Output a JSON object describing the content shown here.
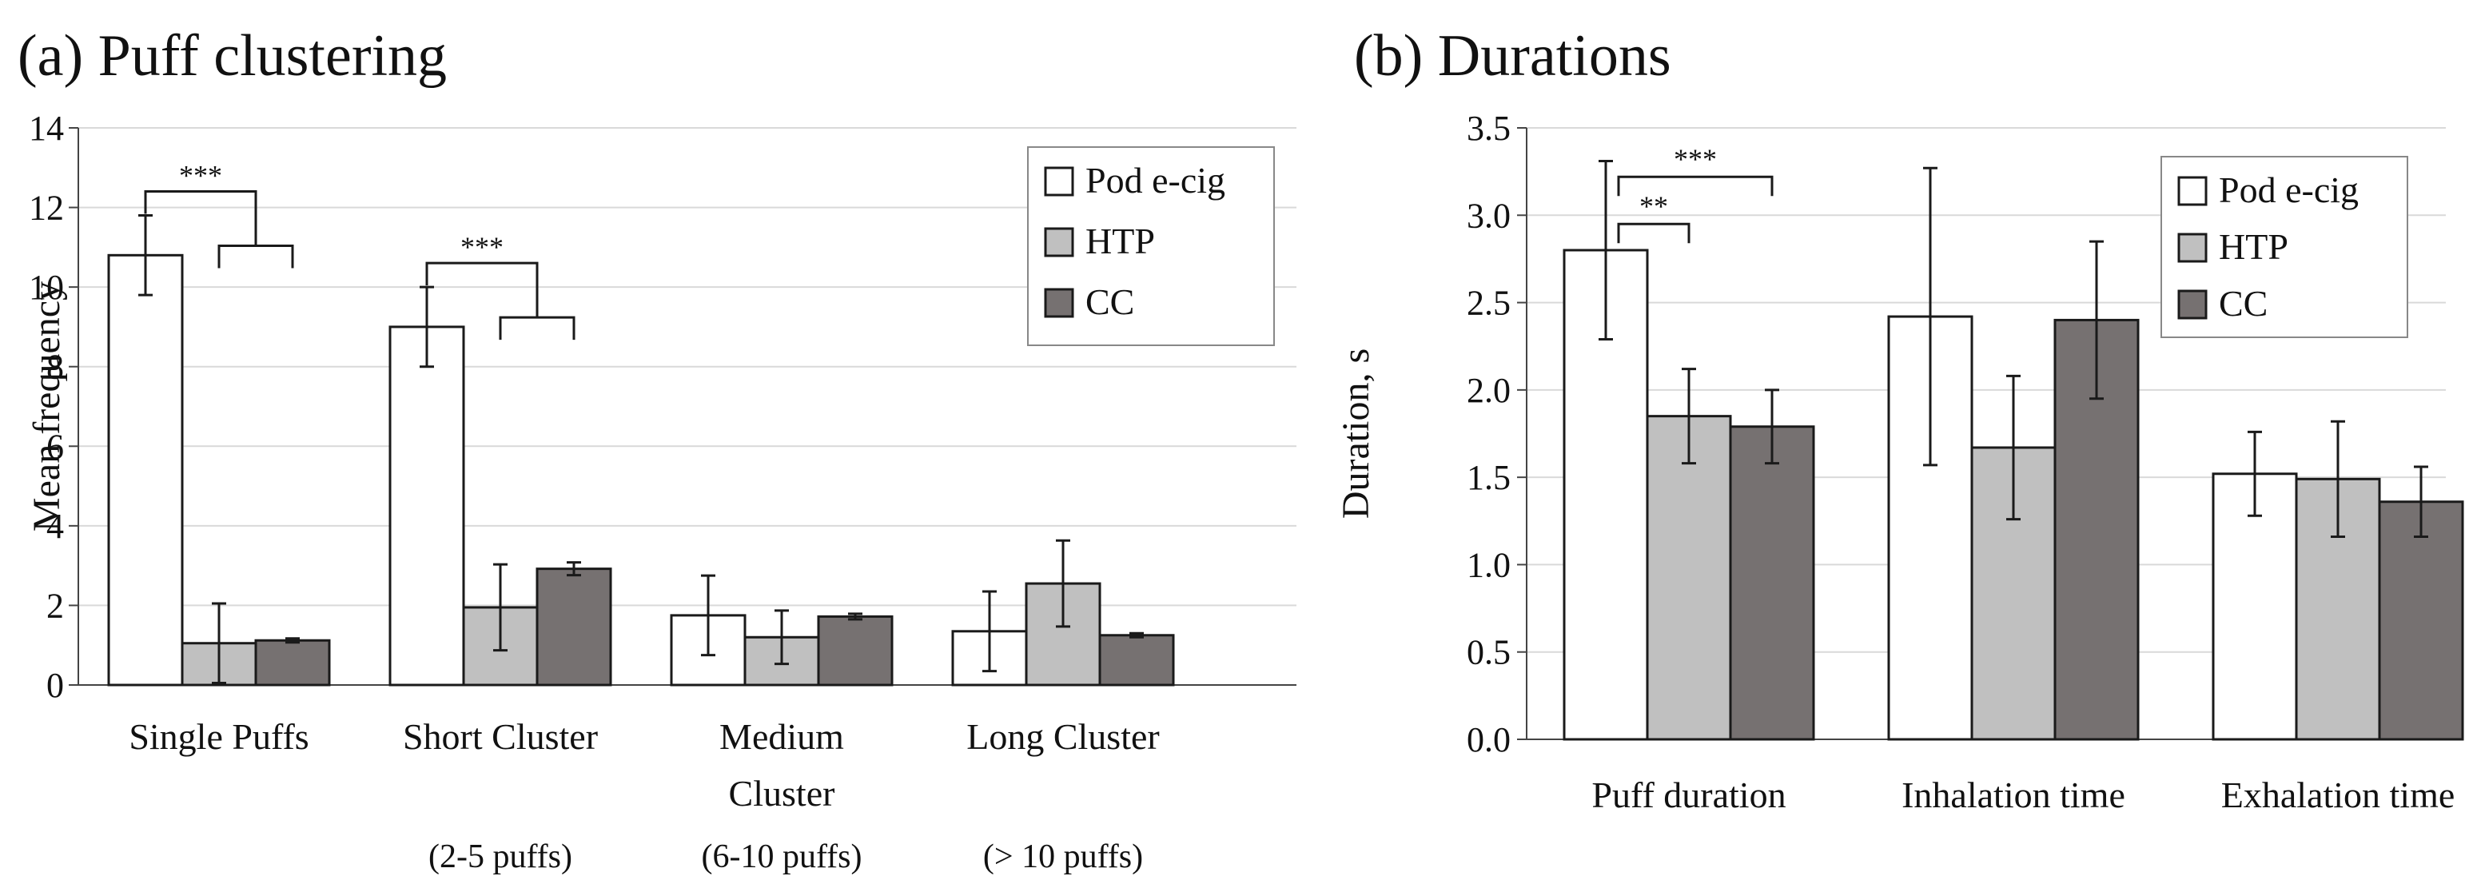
{
  "chart_data": [
    {
      "type": "bar",
      "title": "(a) Puff clustering",
      "ylabel": "Mean frequency",
      "xlabel": "",
      "ylim": [
        0,
        14
      ],
      "yticks": [
        "0",
        "2",
        "4",
        "6",
        "8",
        "10",
        "12",
        "14"
      ],
      "grid": true,
      "legend_position": "top-right",
      "categories": [
        {
          "label": [
            "Single Puffs"
          ],
          "sub": ""
        },
        {
          "label": [
            "Short Cluster"
          ],
          "sub": "(2-5 puffs)"
        },
        {
          "label": [
            "Medium",
            "Cluster"
          ],
          "sub": "(6-10 puffs)"
        },
        {
          "label": [
            "Long Cluster"
          ],
          "sub": "(> 10 puffs)"
        }
      ],
      "series": [
        {
          "name": "Pod e-cig",
          "color": "#ffffff",
          "values": [
            10.8,
            9.0,
            1.75,
            1.35
          ],
          "errors": [
            1.0,
            1.0,
            1.0,
            1.0
          ]
        },
        {
          "name": "HTP",
          "color": "#c0c0c0",
          "values": [
            1.05,
            1.95,
            1.2,
            2.55
          ],
          "errors": [
            1.0,
            1.08,
            0.67,
            1.08
          ]
        },
        {
          "name": "CC",
          "color": "#767171",
          "values": [
            1.12,
            2.92,
            1.72,
            1.25
          ],
          "errors": [
            0.05,
            0.16,
            0.07,
            0.05
          ]
        }
      ],
      "significance": [
        {
          "category": 0,
          "label": "***"
        },
        {
          "category": 1,
          "label": "***"
        }
      ]
    },
    {
      "type": "bar",
      "title": "(b) Durations",
      "ylabel": "Duration, s",
      "xlabel": "",
      "ylim": [
        0,
        3.5
      ],
      "yticks": [
        "0.0",
        "0.5",
        "1.0",
        "1.5",
        "2.0",
        "2.5",
        "3.0",
        "3.5"
      ],
      "grid": true,
      "legend_position": "top-right",
      "categories": [
        {
          "label": [
            "Puff duration"
          ],
          "sub": ""
        },
        {
          "label": [
            "Inhalation time"
          ],
          "sub": ""
        },
        {
          "label": [
            "Exhalation time"
          ],
          "sub": ""
        }
      ],
      "series": [
        {
          "name": "Pod e-cig",
          "color": "#ffffff",
          "values": [
            2.8,
            2.42,
            1.52
          ],
          "errors": [
            0.51,
            0.85,
            0.24
          ]
        },
        {
          "name": "HTP",
          "color": "#c0c0c0",
          "values": [
            1.85,
            1.67,
            1.49
          ],
          "errors": [
            0.27,
            0.41,
            0.33
          ]
        },
        {
          "name": "CC",
          "color": "#767171",
          "values": [
            1.79,
            2.4,
            1.36
          ],
          "errors": [
            0.21,
            0.45,
            0.2
          ]
        }
      ],
      "significance": [
        {
          "category": 0,
          "label": "**"
        },
        {
          "category": 0,
          "label": "***"
        }
      ]
    }
  ]
}
